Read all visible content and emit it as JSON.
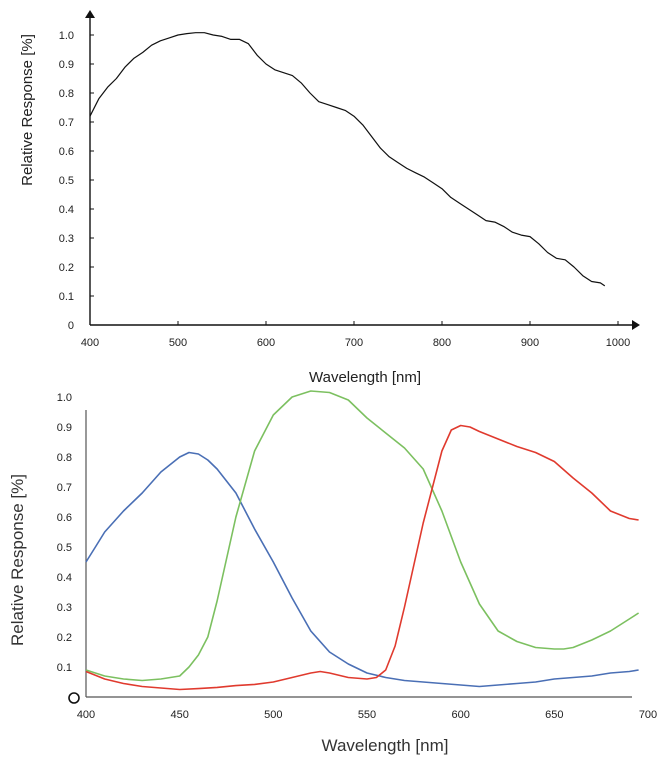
{
  "chart_data": [
    {
      "type": "line",
      "title": "",
      "xlabel": "Wavelength [nm]",
      "ylabel": "Relative Response [%]",
      "xlim": [
        400,
        1000
      ],
      "ylim": [
        0,
        1.0
      ],
      "x_ticks": [
        "400",
        "500",
        "600",
        "700",
        "800",
        "900",
        "1000"
      ],
      "y_ticks": [
        "0",
        "0.1",
        "0.2",
        "0.3",
        "0.4",
        "0.5",
        "0.6",
        "0.7",
        "0.8",
        "0.9",
        "1.0"
      ],
      "grid": false,
      "series": [
        {
          "color": "#111111",
          "x": [
            400,
            410,
            420,
            430,
            440,
            450,
            460,
            470,
            480,
            490,
            500,
            510,
            520,
            530,
            540,
            550,
            560,
            570,
            580,
            590,
            600,
            610,
            620,
            630,
            640,
            650,
            660,
            670,
            680,
            690,
            700,
            710,
            720,
            730,
            740,
            750,
            760,
            770,
            780,
            790,
            800,
            810,
            820,
            830,
            840,
            850,
            860,
            870,
            880,
            890,
            900,
            910,
            920,
            930,
            940,
            950,
            960,
            970,
            980,
            985
          ],
          "y": [
            0.72,
            0.78,
            0.82,
            0.85,
            0.89,
            0.92,
            0.94,
            0.965,
            0.98,
            0.99,
            1.0,
            1.005,
            1.008,
            1.008,
            1.0,
            0.995,
            0.985,
            0.985,
            0.97,
            0.93,
            0.9,
            0.88,
            0.87,
            0.86,
            0.835,
            0.8,
            0.77,
            0.76,
            0.75,
            0.74,
            0.72,
            0.69,
            0.65,
            0.61,
            0.58,
            0.56,
            0.54,
            0.525,
            0.51,
            0.49,
            0.47,
            0.44,
            0.42,
            0.4,
            0.38,
            0.36,
            0.355,
            0.34,
            0.32,
            0.31,
            0.305,
            0.28,
            0.25,
            0.23,
            0.225,
            0.2,
            0.17,
            0.15,
            0.145,
            0.135
          ]
        }
      ]
    },
    {
      "type": "line",
      "title": "",
      "xlabel": "Wavelength [nm]",
      "ylabel": "Relative Response [%]",
      "xlim": [
        400,
        700
      ],
      "ylim": [
        0,
        1.0
      ],
      "x_ticks": [
        "400",
        "450",
        "500",
        "550",
        "600",
        "650",
        "700"
      ],
      "y_ticks": [
        "0.1",
        "0.2",
        "0.3",
        "0.4",
        "0.5",
        "0.6",
        "0.7",
        "0.8",
        "0.9",
        "1.0"
      ],
      "origin_marker": true,
      "grid": false,
      "series": [
        {
          "color": "#4a6fb5",
          "x": [
            400,
            405,
            410,
            420,
            430,
            440,
            450,
            455,
            460,
            465,
            470,
            480,
            490,
            500,
            510,
            520,
            530,
            540,
            550,
            560,
            570,
            580,
            590,
            600,
            610,
            620,
            630,
            640,
            650,
            660,
            670,
            680,
            690,
            695
          ],
          "y": [
            0.45,
            0.5,
            0.55,
            0.62,
            0.68,
            0.75,
            0.8,
            0.815,
            0.81,
            0.79,
            0.76,
            0.68,
            0.56,
            0.45,
            0.33,
            0.22,
            0.15,
            0.11,
            0.08,
            0.065,
            0.055,
            0.05,
            0.045,
            0.04,
            0.035,
            0.04,
            0.045,
            0.05,
            0.06,
            0.065,
            0.07,
            0.08,
            0.085,
            0.09
          ]
        },
        {
          "color": "#7cc060",
          "x": [
            400,
            410,
            420,
            430,
            440,
            450,
            455,
            460,
            465,
            470,
            480,
            490,
            500,
            510,
            520,
            530,
            540,
            550,
            560,
            570,
            580,
            590,
            600,
            610,
            620,
            630,
            640,
            650,
            655,
            660,
            670,
            680,
            690,
            695
          ],
          "y": [
            0.09,
            0.07,
            0.06,
            0.055,
            0.06,
            0.07,
            0.1,
            0.14,
            0.2,
            0.32,
            0.6,
            0.82,
            0.94,
            1.0,
            1.02,
            1.015,
            0.99,
            0.93,
            0.88,
            0.83,
            0.76,
            0.62,
            0.45,
            0.31,
            0.22,
            0.185,
            0.165,
            0.16,
            0.16,
            0.165,
            0.19,
            0.22,
            0.26,
            0.28
          ]
        },
        {
          "color": "#e03a2e",
          "x": [
            400,
            410,
            420,
            430,
            440,
            450,
            460,
            470,
            480,
            490,
            500,
            510,
            520,
            525,
            530,
            540,
            550,
            555,
            560,
            565,
            570,
            580,
            590,
            595,
            600,
            605,
            610,
            620,
            630,
            640,
            650,
            660,
            670,
            680,
            690,
            695
          ],
          "y": [
            0.085,
            0.06,
            0.045,
            0.035,
            0.03,
            0.025,
            0.028,
            0.032,
            0.038,
            0.042,
            0.05,
            0.065,
            0.08,
            0.085,
            0.08,
            0.065,
            0.06,
            0.065,
            0.09,
            0.17,
            0.3,
            0.58,
            0.82,
            0.89,
            0.905,
            0.9,
            0.885,
            0.86,
            0.835,
            0.815,
            0.785,
            0.73,
            0.68,
            0.62,
            0.595,
            0.59
          ]
        }
      ]
    }
  ]
}
